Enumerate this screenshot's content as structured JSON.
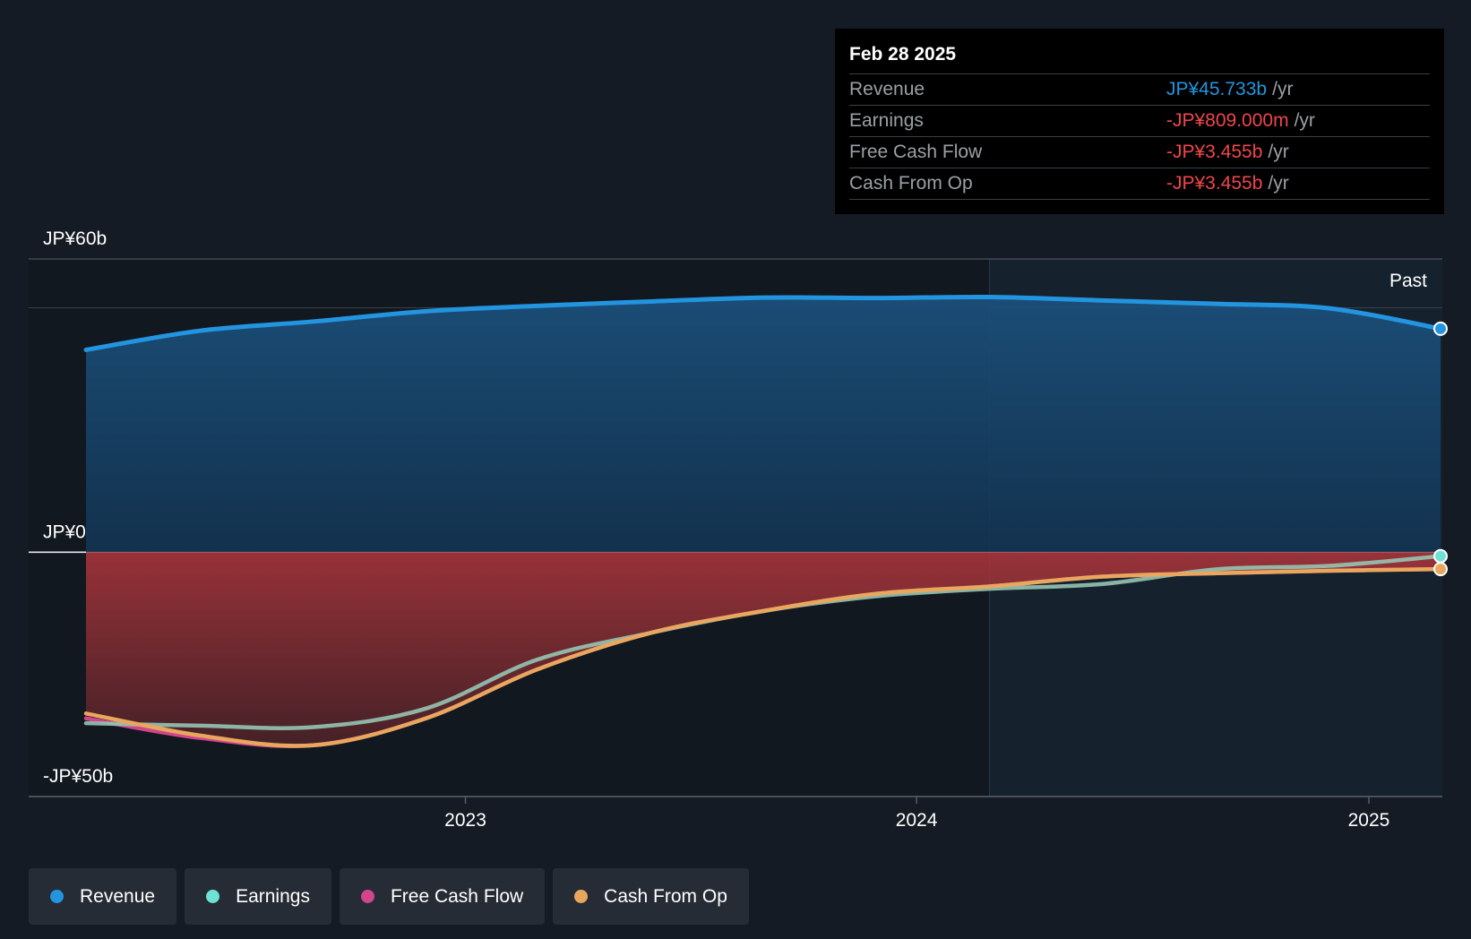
{
  "tooltip": {
    "date": "Feb 28 2025",
    "rows": [
      {
        "label": "Revenue",
        "value": "JP¥45.733b",
        "unit": "/yr"
      },
      {
        "label": "Earnings",
        "value": "-JP¥809.000m",
        "unit": "/yr"
      },
      {
        "label": "Free Cash Flow",
        "value": "-JP¥3.455b",
        "unit": "/yr"
      },
      {
        "label": "Cash From Op",
        "value": "-JP¥3.455b",
        "unit": "/yr"
      }
    ]
  },
  "legend": [
    {
      "label": "Revenue",
      "color": "#2394df"
    },
    {
      "label": "Earnings",
      "color": "#6ee2d4"
    },
    {
      "label": "Free Cash Flow",
      "color": "#d0458c"
    },
    {
      "label": "Cash From Op",
      "color": "#e9a75e"
    }
  ],
  "chart_data": {
    "type": "line",
    "y_tick_labels": [
      "JP¥60b",
      "JP¥0",
      "-JP¥50b"
    ],
    "ylim": [
      -50,
      60
    ],
    "y_unit": "JP¥ billions",
    "x_tick_labels": [
      "2023",
      "2024",
      "2025"
    ],
    "xlim": [
      "2022-02-28",
      "2025-02-28"
    ],
    "past_label": "Past",
    "highlight_start": "2024-02-29",
    "grid": "horizontal",
    "series": [
      {
        "name": "Revenue",
        "color": "#2394df",
        "x": [
          "2022-02-28",
          "2022-05-31",
          "2022-08-31",
          "2022-11-30",
          "2023-02-28",
          "2023-05-31",
          "2023-08-31",
          "2023-11-30",
          "2024-02-29",
          "2024-05-31",
          "2024-08-31",
          "2024-11-30",
          "2025-02-28"
        ],
        "y": [
          41.4,
          45.3,
          47.2,
          49.3,
          50.4,
          51.3,
          52.1,
          52.0,
          52.2,
          51.5,
          50.8,
          49.9,
          45.73
        ]
      },
      {
        "name": "Earnings",
        "color": "#6ee2d4",
        "x": [
          "2022-02-28",
          "2022-05-31",
          "2022-08-31",
          "2022-11-30",
          "2023-02-28",
          "2023-05-31",
          "2023-08-31",
          "2023-11-30",
          "2024-02-29",
          "2024-05-31",
          "2024-08-31",
          "2024-11-30",
          "2025-02-28"
        ],
        "y": [
          -35.0,
          -35.5,
          -35.8,
          -32.0,
          -22.0,
          -16.5,
          -12.0,
          -9.0,
          -7.5,
          -6.5,
          -3.5,
          -2.8,
          -0.81
        ]
      },
      {
        "name": "Free Cash Flow",
        "color": "#d0458c",
        "x": [
          "2022-02-28",
          "2022-05-31",
          "2022-08-31",
          "2022-11-30",
          "2023-02-28",
          "2023-05-31",
          "2023-08-31",
          "2023-11-30",
          "2024-02-29",
          "2024-05-31",
          "2024-08-31",
          "2024-11-30",
          "2025-02-28"
        ],
        "y": [
          -34.0,
          -38.0,
          -39.5,
          -34.0,
          -24.0,
          -16.5,
          -12.0,
          -8.5,
          -7.0,
          -5.0,
          -4.3,
          -3.8,
          -3.455
        ]
      },
      {
        "name": "Cash From Op",
        "color": "#e9a75e",
        "x": [
          "2022-02-28",
          "2022-05-31",
          "2022-08-31",
          "2022-11-30",
          "2023-02-28",
          "2023-05-31",
          "2023-08-31",
          "2023-11-30",
          "2024-02-29",
          "2024-05-31",
          "2024-08-31",
          "2024-11-30",
          "2025-02-28"
        ],
        "y": [
          -33.0,
          -37.5,
          -39.5,
          -34.0,
          -24.0,
          -16.5,
          -12.0,
          -8.5,
          -7.0,
          -5.0,
          -4.3,
          -3.8,
          -3.455
        ]
      }
    ]
  }
}
